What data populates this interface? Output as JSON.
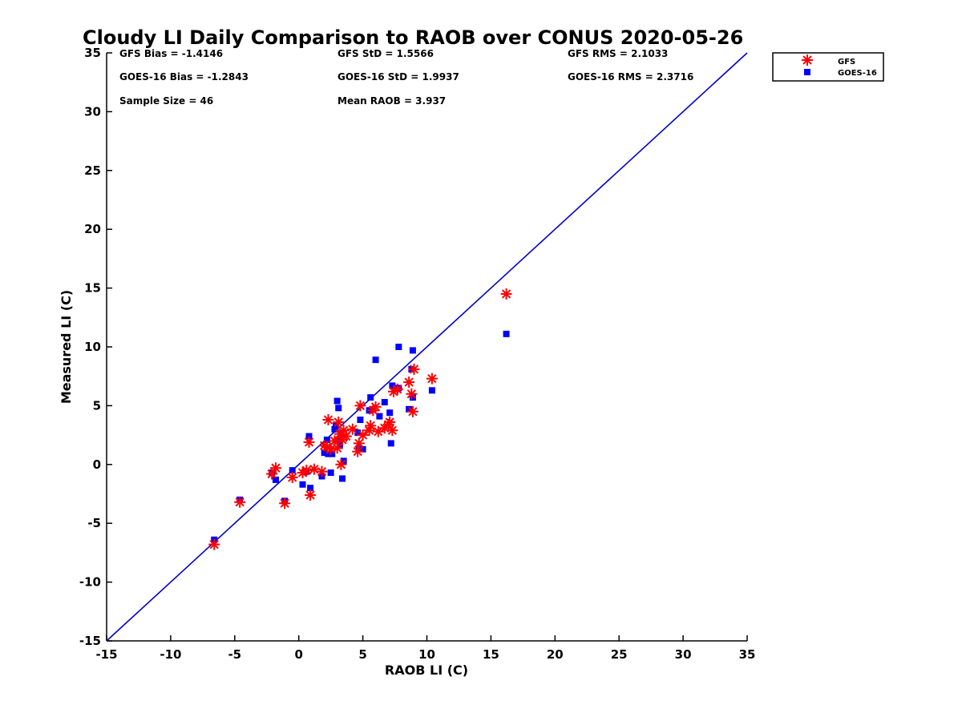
{
  "chart_data": {
    "type": "scatter",
    "title": "Cloudy LI Daily Comparison to RAOB over CONUS 2020-05-26",
    "xlabel": "RAOB LI (C)",
    "ylabel": "Measured LI (C)",
    "xlim": [
      -15,
      35
    ],
    "ylim": [
      -15,
      35
    ],
    "xticks": [
      -15,
      -10,
      -5,
      0,
      5,
      10,
      15,
      20,
      25,
      30,
      35
    ],
    "yticks": [
      -15,
      -10,
      -5,
      0,
      5,
      10,
      15,
      20,
      25,
      30,
      35
    ],
    "reference_line": {
      "name": "1:1 line",
      "from": [
        -15,
        -15
      ],
      "to": [
        35,
        35
      ],
      "color": "#0000cc"
    },
    "stats": [
      "GFS Bias = -1.4146",
      "GFS StD = 1.5566",
      "GFS RMS = 2.1033",
      "GOES-16 Bias = -1.2843",
      "GOES-16 StD = 1.9937",
      "GOES-16 RMS = 2.3716",
      "Sample Size = 46",
      "Mean RAOB = 3.937"
    ],
    "legend": {
      "placement": "top-right-outside",
      "entries": [
        "GFS",
        "GOES-16"
      ]
    },
    "series": [
      {
        "name": "GFS",
        "marker": "asterisk",
        "color": "#ff0000",
        "points": [
          [
            -6.6,
            -6.8
          ],
          [
            -4.6,
            -3.2
          ],
          [
            -2.1,
            -0.8
          ],
          [
            -1.8,
            -0.3
          ],
          [
            -1.1,
            -3.3
          ],
          [
            -0.5,
            -1.1
          ],
          [
            0.3,
            -0.7
          ],
          [
            0.6,
            -0.5
          ],
          [
            0.8,
            1.9
          ],
          [
            0.9,
            -2.6
          ],
          [
            1.8,
            -0.6
          ],
          [
            2.2,
            1.5
          ],
          [
            2.3,
            3.8
          ],
          [
            2.5,
            1.3
          ],
          [
            2.8,
            2.0
          ],
          [
            3.0,
            1.4
          ],
          [
            3.1,
            3.6
          ],
          [
            3.2,
            2.6
          ],
          [
            3.4,
            2.1
          ],
          [
            3.5,
            2.9
          ],
          [
            3.3,
            0.0
          ],
          [
            4.6,
            1.1
          ],
          [
            4.7,
            1.8
          ],
          [
            4.8,
            5.0
          ],
          [
            5.0,
            2.5
          ],
          [
            5.5,
            2.9
          ],
          [
            5.6,
            3.3
          ],
          [
            5.8,
            4.6
          ],
          [
            6.0,
            4.9
          ],
          [
            6.2,
            2.8
          ],
          [
            6.7,
            3.1
          ],
          [
            7.0,
            3.4
          ],
          [
            7.1,
            3.6
          ],
          [
            7.3,
            2.9
          ],
          [
            7.4,
            6.2
          ],
          [
            7.7,
            6.4
          ],
          [
            8.6,
            7.0
          ],
          [
            8.8,
            6.0
          ],
          [
            8.9,
            4.5
          ],
          [
            9.0,
            8.1
          ],
          [
            10.4,
            7.3
          ],
          [
            16.2,
            14.5
          ],
          [
            3.7,
            2.4
          ],
          [
            4.2,
            3.0
          ],
          [
            2.0,
            1.6
          ],
          [
            1.2,
            -0.4
          ]
        ]
      },
      {
        "name": "GOES-16",
        "marker": "square",
        "color": "#0000ff",
        "points": [
          [
            -6.6,
            -6.4
          ],
          [
            -4.6,
            -3.0
          ],
          [
            -2.1,
            -0.7
          ],
          [
            -1.8,
            -1.3
          ],
          [
            -1.1,
            -3.1
          ],
          [
            -0.5,
            -0.5
          ],
          [
            0.3,
            -1.7
          ],
          [
            0.6,
            -0.6
          ],
          [
            0.8,
            2.4
          ],
          [
            0.9,
            -2.0
          ],
          [
            1.8,
            -1.0
          ],
          [
            2.2,
            2.1
          ],
          [
            2.3,
            0.9
          ],
          [
            2.5,
            -0.7
          ],
          [
            2.8,
            3.0
          ],
          [
            3.0,
            5.4
          ],
          [
            3.1,
            4.8
          ],
          [
            3.2,
            1.6
          ],
          [
            3.4,
            -1.2
          ],
          [
            3.5,
            0.3
          ],
          [
            3.3,
            2.3
          ],
          [
            4.6,
            2.7
          ],
          [
            4.7,
            1.4
          ],
          [
            4.8,
            3.8
          ],
          [
            5.0,
            1.3
          ],
          [
            5.5,
            4.6
          ],
          [
            5.6,
            5.7
          ],
          [
            6.0,
            8.9
          ],
          [
            6.3,
            4.1
          ],
          [
            6.7,
            5.3
          ],
          [
            7.1,
            4.4
          ],
          [
            7.2,
            1.8
          ],
          [
            7.3,
            6.7
          ],
          [
            7.8,
            6.5
          ],
          [
            7.8,
            10.0
          ],
          [
            8.6,
            4.7
          ],
          [
            8.8,
            8.1
          ],
          [
            8.9,
            9.7
          ],
          [
            8.9,
            5.7
          ],
          [
            10.4,
            6.3
          ],
          [
            16.2,
            11.1
          ],
          [
            2.6,
            0.9
          ],
          [
            2.9,
            3.3
          ],
          [
            3.3,
            2.6
          ],
          [
            2.0,
            1.0
          ],
          [
            3.1,
            2.0
          ]
        ]
      }
    ]
  }
}
